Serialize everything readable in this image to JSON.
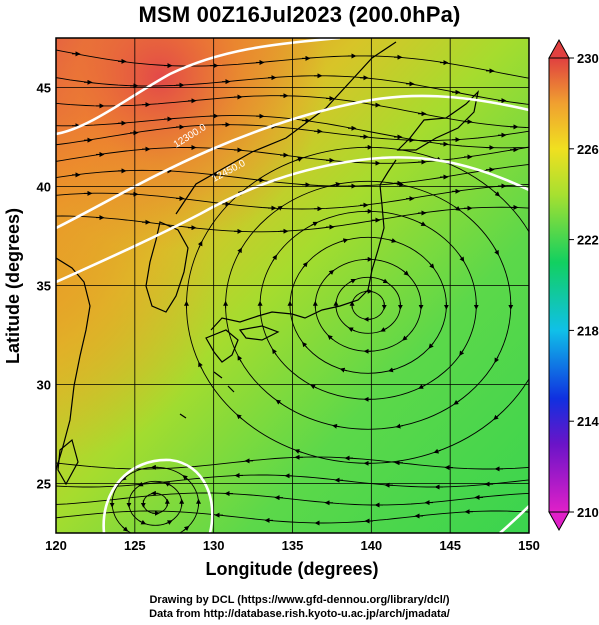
{
  "title": "MSM 00Z16Jul2023 (200.0hPa)",
  "map": {
    "lon_range": [
      120,
      150
    ],
    "lat_range": [
      22.5,
      47.5
    ],
    "xlabel": "Longitude (degrees)",
    "ylabel": "Latitude  (degrees)",
    "xticks": [
      "120",
      "125",
      "130",
      "135",
      "140",
      "145",
      "150"
    ],
    "yticks": [
      "25",
      "30",
      "35",
      "40",
      "45"
    ],
    "contour_labels": [
      "12300.0",
      "12450.0"
    ],
    "field_colors": {
      "low": "#39d85a",
      "mid": "#b8e02e",
      "high": "#ef7a2a",
      "max": "#e25a4a"
    },
    "anticyclone_center": {
      "lon": 139.8,
      "lat": 34.0
    },
    "cyclone_center": {
      "lon": 126.3,
      "lat": 24.0
    }
  },
  "colorbar": {
    "min": 210,
    "max": 230,
    "tick_labels": [
      "230",
      "226",
      "222",
      "218",
      "214",
      "210"
    ],
    "stops": [
      {
        "value": 210,
        "color": "#e020c8"
      },
      {
        "value": 213,
        "color": "#6a14c8"
      },
      {
        "value": 215,
        "color": "#1030e0"
      },
      {
        "value": 218,
        "color": "#10c0e8"
      },
      {
        "value": 221,
        "color": "#12d060"
      },
      {
        "value": 224,
        "color": "#a8e030"
      },
      {
        "value": 226,
        "color": "#f0e020"
      },
      {
        "value": 228,
        "color": "#f0a030"
      },
      {
        "value": 230,
        "color": "#e04040"
      }
    ]
  },
  "credits": {
    "line1": "Drawing by DCL (https://www.gfd-dennou.org/library/dcl/)",
    "line2": "Data from http://database.rish.kyoto-u.ac.jp/arch/jmadata/"
  }
}
